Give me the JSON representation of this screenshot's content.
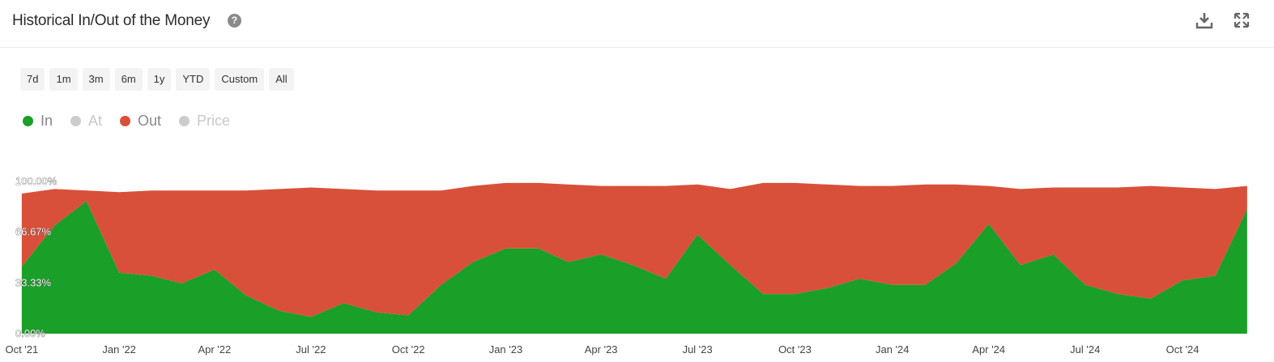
{
  "header": {
    "title": "Historical In/Out of the Money",
    "help_icon": "question-circle-icon",
    "download_icon": "download-icon",
    "fullscreen_icon": "expand-icon"
  },
  "ranges": [
    "7d",
    "1m",
    "3m",
    "6m",
    "1y",
    "YTD",
    "Custom",
    "All"
  ],
  "legend": [
    {
      "label": "In",
      "color": "#1a9f28",
      "active": true
    },
    {
      "label": "At",
      "color": "#cccccc",
      "active": false
    },
    {
      "label": "Out",
      "color": "#d9503a",
      "active": true
    },
    {
      "label": "Price",
      "color": "#cccccc",
      "active": false
    }
  ],
  "chart_data": {
    "type": "area",
    "stacked": true,
    "ylim": [
      0,
      100
    ],
    "y_ticks": [
      "0.00%",
      "33.33%",
      "66.67%",
      "100.00%"
    ],
    "x_ticks": [
      "Oct '21",
      "Jan '22",
      "Apr '22",
      "Jul '22",
      "Oct '22",
      "Jan '23",
      "Apr '23",
      "Jul '23",
      "Oct '23",
      "Jan '24",
      "Apr '24",
      "Jul '24",
      "Oct '24"
    ],
    "x": [
      "2021-10-01",
      "2021-11-01",
      "2021-12-01",
      "2022-01-01",
      "2022-02-01",
      "2022-03-01",
      "2022-04-01",
      "2022-05-01",
      "2022-06-01",
      "2022-07-01",
      "2022-08-01",
      "2022-09-01",
      "2022-10-01",
      "2022-11-01",
      "2022-12-01",
      "2023-01-01",
      "2023-02-01",
      "2023-03-01",
      "2023-04-01",
      "2023-05-01",
      "2023-06-01",
      "2023-07-01",
      "2023-08-01",
      "2023-09-01",
      "2023-10-01",
      "2023-11-01",
      "2023-12-01",
      "2024-01-01",
      "2024-02-01",
      "2024-03-01",
      "2024-04-01",
      "2024-05-01",
      "2024-06-01",
      "2024-07-01",
      "2024-08-01",
      "2024-09-01",
      "2024-10-01",
      "2024-11-01",
      "2024-12-01"
    ],
    "series": [
      {
        "name": "In",
        "color": "#1a9f28",
        "values": [
          44,
          71,
          87,
          40,
          38,
          33,
          42,
          25,
          15,
          11,
          20,
          14,
          12,
          32,
          47,
          56,
          56,
          47,
          52,
          45,
          36,
          65,
          45,
          26,
          26,
          30,
          36,
          32,
          32,
          46,
          72,
          45,
          52,
          32,
          26,
          23,
          35,
          38,
          82
        ]
      },
      {
        "name": "Out",
        "color": "#d9503a",
        "values": [
          48,
          24,
          7,
          53,
          56,
          61,
          52,
          69,
          80,
          85,
          75,
          80,
          82,
          62,
          50,
          43,
          43,
          51,
          45,
          52,
          61,
          33,
          50,
          73,
          73,
          68,
          61,
          65,
          66,
          52,
          25,
          50,
          44,
          64,
          70,
          74,
          61,
          57,
          15
        ]
      }
    ]
  }
}
